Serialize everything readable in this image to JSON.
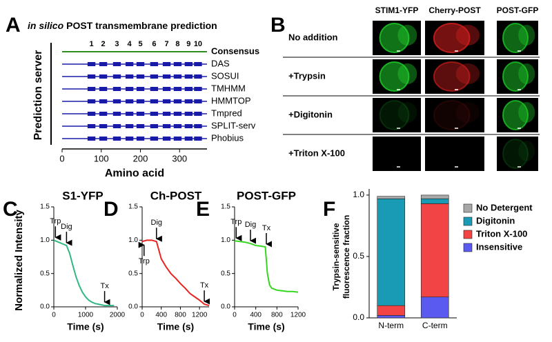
{
  "panel_labels": [
    "A",
    "B",
    "C",
    "D",
    "E",
    "F"
  ],
  "prediction": {
    "title_italic": "in silico",
    "title": "POST transmembrane prediction",
    "y_label": "Prediction server",
    "x_label": "Amino acid",
    "xlim": [
      0,
      370
    ],
    "xticks": [
      0,
      100,
      200,
      300
    ],
    "consensus": {
      "name": "Consensus",
      "color": "#2e8b1e",
      "helices": [
        {
          "number": 1,
          "center": 75
        },
        {
          "number": 2,
          "center": 105
        },
        {
          "number": 3,
          "center": 140
        },
        {
          "number": 4,
          "center": 172
        },
        {
          "number": 5,
          "center": 200
        },
        {
          "number": 6,
          "center": 235
        },
        {
          "number": 7,
          "center": 267
        },
        {
          "number": 8,
          "center": 295
        },
        {
          "number": 9,
          "center": 323
        },
        {
          "number": 10,
          "center": 347
        }
      ]
    },
    "servers": [
      {
        "name": "DAS",
        "color": "#1a1aa8",
        "helices": [
          [
            65,
            85
          ],
          [
            95,
            115
          ],
          [
            130,
            150
          ],
          [
            162,
            182
          ],
          [
            190,
            210
          ],
          [
            225,
            245
          ],
          [
            257,
            277
          ],
          [
            285,
            305
          ],
          [
            313,
            333
          ],
          [
            337,
            357
          ]
        ]
      },
      {
        "name": "SOSUI",
        "color": "#1a1aa8",
        "helices": [
          [
            65,
            85
          ],
          [
            95,
            115
          ],
          [
            130,
            150
          ],
          [
            162,
            182
          ],
          [
            190,
            210
          ],
          [
            225,
            245
          ],
          [
            257,
            277
          ],
          [
            285,
            305
          ],
          [
            313,
            333
          ],
          [
            337,
            357
          ]
        ]
      },
      {
        "name": "TMHMM",
        "color": "#1a1aa8",
        "helices": [
          [
            65,
            85
          ],
          [
            95,
            115
          ],
          [
            130,
            150
          ],
          [
            162,
            182
          ],
          [
            190,
            210
          ],
          [
            225,
            245
          ],
          [
            257,
            277
          ],
          [
            285,
            305
          ],
          [
            313,
            333
          ],
          [
            337,
            357
          ]
        ]
      },
      {
        "name": "HMMTOP",
        "color": "#1a1aa8",
        "helices": [
          [
            65,
            85
          ],
          [
            95,
            115
          ],
          [
            130,
            150
          ],
          [
            162,
            182
          ],
          [
            190,
            210
          ],
          [
            225,
            245
          ],
          [
            257,
            277
          ],
          [
            285,
            305
          ],
          [
            313,
            333
          ],
          [
            337,
            357
          ]
        ]
      },
      {
        "name": "Tmpred",
        "color": "#1a1aa8",
        "helices": [
          [
            65,
            85
          ],
          [
            95,
            115
          ],
          [
            130,
            150
          ],
          [
            162,
            182
          ],
          [
            190,
            210
          ],
          [
            225,
            245
          ],
          [
            257,
            277
          ],
          [
            285,
            305
          ],
          [
            313,
            333
          ],
          [
            337,
            357
          ]
        ]
      },
      {
        "name": "SPLIT-serv",
        "color": "#1a1aa8",
        "helices": [
          [
            65,
            85
          ],
          [
            95,
            115
          ],
          [
            130,
            150
          ],
          [
            162,
            182
          ],
          [
            190,
            210
          ],
          [
            225,
            245
          ],
          [
            257,
            277
          ],
          [
            285,
            305
          ],
          [
            313,
            333
          ],
          [
            337,
            357
          ]
        ]
      },
      {
        "name": "Phobius",
        "color": "#1a1aa8",
        "helices": [
          [
            65,
            85
          ],
          [
            95,
            115
          ],
          [
            130,
            150
          ],
          [
            162,
            182
          ],
          [
            190,
            210
          ],
          [
            225,
            245
          ],
          [
            257,
            277
          ],
          [
            285,
            305
          ],
          [
            313,
            333
          ],
          [
            337,
            357
          ]
        ]
      }
    ]
  },
  "imaging": {
    "columns": [
      "STIM1-YFP",
      "Cherry-POST",
      "POST-GFP"
    ],
    "rows": [
      "No addition",
      "+Trypsin",
      "+Digitonin",
      "+Triton X-100"
    ]
  },
  "chart_data": [
    {
      "type": "line",
      "title": "S1-YFP",
      "y_label": "Normalized Intensity",
      "x_label": "Time (s)",
      "x": [
        0,
        100,
        200,
        300,
        400,
        500,
        600,
        700,
        800,
        900,
        1000,
        1100,
        1200,
        1300,
        1400,
        1500,
        1600,
        1700,
        1800,
        1900
      ],
      "series": [
        {
          "name": "S1-YFP",
          "color": "#2fb882",
          "values": [
            1.0,
            0.98,
            0.96,
            0.94,
            0.92,
            0.8,
            0.62,
            0.45,
            0.32,
            0.22,
            0.15,
            0.1,
            0.07,
            0.05,
            0.04,
            0.03,
            0.02,
            0.02,
            0.02,
            0.02
          ]
        }
      ],
      "xlim": [
        0,
        2000
      ],
      "xticks": [
        0,
        1000,
        2000
      ],
      "ylim": [
        0,
        1.5
      ],
      "yticks": [
        {
          "value": 0,
          "label": "0.0"
        },
        0.5,
        {
          "value": 1,
          "label": "1.0"
        },
        1.5
      ],
      "annotations": [
        {
          "text": "Trp",
          "x": 50,
          "y": 1.0,
          "side": "above"
        },
        {
          "text": "Dig",
          "x": 400,
          "y": 0.92,
          "side": "above"
        },
        {
          "text": "Tx",
          "x": 1600,
          "y": 0.03,
          "side": "above"
        }
      ]
    },
    {
      "type": "line",
      "title": "Ch-POST",
      "x_label": "Time (s)",
      "x": [
        0,
        100,
        200,
        300,
        400,
        500,
        600,
        700,
        800,
        900,
        1000,
        1100,
        1200,
        1300,
        1400
      ],
      "series": [
        {
          "name": "Ch-POST",
          "color": "#e8231f",
          "values": [
            0.98,
            1.0,
            1.0,
            0.98,
            0.72,
            0.6,
            0.5,
            0.43,
            0.35,
            0.28,
            0.2,
            0.15,
            0.1,
            0.04,
            0.02
          ]
        }
      ],
      "xlim": [
        0,
        1400
      ],
      "xticks": [
        0,
        400,
        800,
        1200
      ],
      "ylim": [
        0,
        1.5
      ],
      "yticks": [
        {
          "value": 0,
          "label": "0.0"
        },
        0.5,
        {
          "value": 1,
          "label": "1.0"
        },
        1.5
      ],
      "annotations": [
        {
          "text": "Trp",
          "x": 40,
          "y": 0.97,
          "side": "below"
        },
        {
          "text": "Dig",
          "x": 300,
          "y": 0.98,
          "side": "above"
        },
        {
          "text": "Tx",
          "x": 1300,
          "y": 0.04,
          "side": "above"
        }
      ]
    },
    {
      "type": "line",
      "title": "POST-GFP",
      "x_label": "Time (s)",
      "x": [
        0,
        100,
        200,
        300,
        400,
        500,
        580,
        620,
        660,
        700,
        800,
        900,
        1000,
        1100,
        1200
      ],
      "series": [
        {
          "name": "POST-GFP",
          "color": "#35d61e",
          "values": [
            0.99,
            0.98,
            0.97,
            0.95,
            0.92,
            0.91,
            0.9,
            0.5,
            0.33,
            0.28,
            0.25,
            0.24,
            0.23,
            0.23,
            0.22
          ]
        }
      ],
      "xlim": [
        0,
        1200
      ],
      "xticks": [
        0,
        400,
        800,
        1200
      ],
      "ylim": [
        0,
        1.5
      ],
      "yticks": [
        {
          "value": 0,
          "label": "0.0"
        },
        0.5,
        {
          "value": 1,
          "label": "1.0"
        },
        1.5
      ],
      "annotations": [
        {
          "text": "Trp",
          "x": 30,
          "y": 0.99,
          "side": "above"
        },
        {
          "text": "Dig",
          "x": 300,
          "y": 0.95,
          "side": "above"
        },
        {
          "text": "Tx",
          "x": 600,
          "y": 0.9,
          "side": "above"
        }
      ]
    },
    {
      "type": "stacked_bar",
      "y_label": [
        "Trypsin-sensitive",
        "fluorescence fraction"
      ],
      "categories": [
        "N-term",
        "C-term"
      ],
      "series": [
        {
          "name": "No Detergent",
          "color": "#a8a8a8",
          "values": [
            0.02,
            0.03
          ]
        },
        {
          "name": "Digitonin",
          "color": "#1a9bb5",
          "values": [
            0.87,
            0.04
          ]
        },
        {
          "name": "Triton X-100",
          "color": "#f24444",
          "values": [
            0.08,
            0.76
          ]
        },
        {
          "name": "Insensitive",
          "color": "#5a5af0",
          "values": [
            0.02,
            0.17
          ]
        }
      ],
      "ylim": [
        0,
        1.05
      ],
      "yticks": [
        {
          "value": 0,
          "label": "0.0"
        },
        0.5,
        {
          "value": 1,
          "label": "1.0"
        }
      ]
    }
  ]
}
